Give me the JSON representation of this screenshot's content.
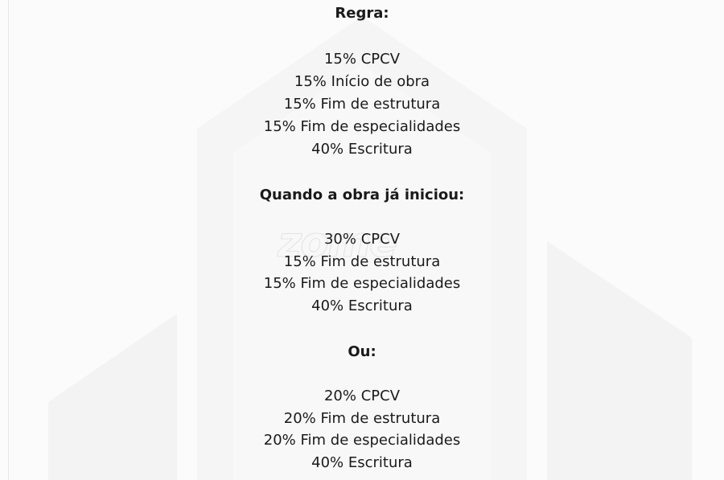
{
  "watermark": {
    "logo_text": "zome"
  },
  "sections": [
    {
      "heading": "Regra:",
      "items": [
        "15% CPCV",
        "15% Início de obra",
        "15% Fim de estrutura",
        "15% Fim de especialidades",
        "40% Escritura"
      ]
    },
    {
      "heading": "Quando a obra já iniciou:",
      "items": [
        "30% CPCV",
        "15% Fim de estrutura",
        "15% Fim de especialidades",
        "40% Escritura"
      ]
    },
    {
      "heading": "Ou:",
      "items": [
        "20% CPCV",
        "20% Fim de estrutura",
        "20% Fim de especialidades",
        "40% Escritura"
      ]
    }
  ]
}
